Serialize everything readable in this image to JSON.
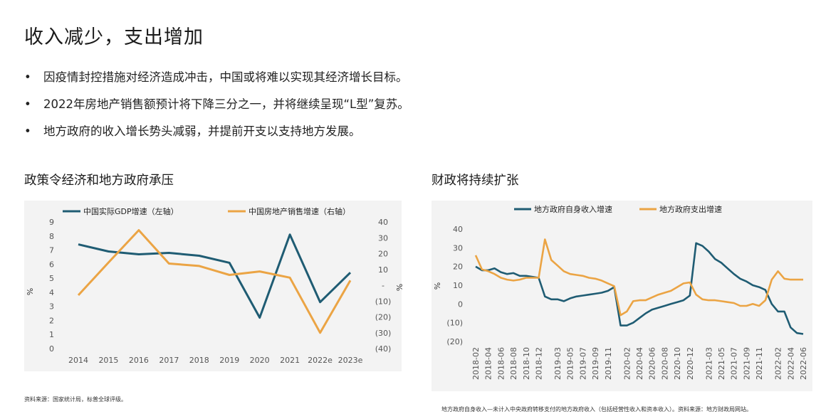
{
  "title": "收入减少，支出增加",
  "bullets": [
    "因疫情封控措施对经济造成冲击，中国或将难以实现其经济增长目标。",
    "2022年房地产销售额预计将下降三分之一，并将继续呈现“L型”复苏。",
    "地方政府的收入增长势头减弱，并提前开支以支持地方发展。"
  ],
  "bullet_symbol": "•",
  "left_source": "资料来源：国家统计局，标普全球评级。",
  "right_source": "地方政府自身收入—未计入中央政府转移支付的地方政府收入（包括经营性收入和资本收入）。资料来源：地方财政局网站。",
  "chart_data": [
    {
      "type": "line",
      "title": "政策令经济和地方政府承压",
      "categories": [
        "2014",
        "2015",
        "2016",
        "2017",
        "2018",
        "2019",
        "2020",
        "2021",
        "2022e",
        "2023e"
      ],
      "series": [
        {
          "name": "中国实际GDP增速（左轴）",
          "axis": "left",
          "color": "#1f5c73",
          "values": [
            7.4,
            6.9,
            6.7,
            6.8,
            6.6,
            6.1,
            2.2,
            8.1,
            3.3,
            5.4
          ]
        },
        {
          "name": "中国房地产销售增速（右轴）",
          "axis": "right",
          "color": "#eba444",
          "values": [
            -6.3,
            14.4,
            34.8,
            13.7,
            12.2,
            6.5,
            8.7,
            4.8,
            -30,
            3
          ]
        }
      ],
      "ylabel": "%",
      "y2label": "%",
      "ylim": [
        0,
        9
      ],
      "yticks": [
        "9",
        "8",
        "7",
        "6",
        "5",
        "4",
        "3",
        "2",
        "1",
        "0"
      ],
      "y2lim": [
        -40,
        40
      ],
      "y2ticks": [
        "40",
        "30",
        "20",
        "10",
        "-",
        "(10)",
        "(20)",
        "(30)",
        "(40)"
      ],
      "grid": false,
      "legend_position": "top",
      "background": "#f3f3f3"
    },
    {
      "type": "line",
      "title": "财政将持续扩张",
      "categories": [
        "2018-02",
        "2018-03",
        "2018-04",
        "2018-05",
        "2018-06",
        "2018-07",
        "2018-08",
        "2018-09",
        "2018-10",
        "2018-11",
        "2018-12",
        "2019-01",
        "2019-02",
        "2019-03",
        "2019-04",
        "2019-05",
        "2019-06",
        "2019-07",
        "2019-08",
        "2019-09",
        "2019-10",
        "2019-11",
        "2019-12",
        "2020-01",
        "2020-02",
        "2020-03",
        "2020-04",
        "2020-05",
        "2020-06",
        "2020-07",
        "2020-08",
        "2020-09",
        "2020-10",
        "2020-11",
        "2020-12",
        "2021-01",
        "2021-02",
        "2021-03",
        "2021-04",
        "2021-05",
        "2021-06",
        "2021-07",
        "2021-08",
        "2021-09",
        "2021-10",
        "2021-11",
        "2021-12",
        "2022-01",
        "2022-02",
        "2022-03",
        "2022-04",
        "2022-05",
        "2022-06"
      ],
      "x_tick_labels": [
        "2018-02",
        "2018-04",
        "2018-06",
        "2018-08",
        "2018-10",
        "2018-12",
        "2019-03",
        "2019-05",
        "2019-07",
        "2019-09",
        "2019-11",
        "2020-02",
        "2020-04",
        "2020-06",
        "2020-08",
        "2020-10",
        "2020-12",
        "2021-03",
        "2021-05",
        "2021-07",
        "2021-09",
        "2021-11",
        "2022-02",
        "2022-04",
        "2022-06"
      ],
      "series": [
        {
          "name": "地方政府自身收入增速",
          "color": "#1f5c73",
          "values": [
            20,
            18,
            18,
            19,
            17,
            16,
            16.5,
            15,
            15,
            14.5,
            14,
            4,
            2.5,
            2.5,
            1.5,
            3,
            4,
            4.5,
            5,
            5.5,
            6,
            7,
            9,
            -11.5,
            -11.5,
            -10,
            -7.5,
            -5,
            -3,
            -2,
            -1,
            0,
            1,
            2,
            4.5,
            32.5,
            31,
            28,
            24,
            22,
            19,
            16,
            13.5,
            12,
            10,
            9,
            7.5,
            0,
            -4,
            -4,
            -12.5,
            -15.5,
            -16
          ]
        },
        {
          "name": "地方政府支出增速",
          "color": "#eba444",
          "values": [
            26,
            18.5,
            17.5,
            16,
            14,
            13,
            12.5,
            13,
            14,
            14,
            14,
            34.5,
            23.5,
            20.5,
            17.5,
            16,
            15.5,
            15,
            14,
            13.5,
            12.5,
            11,
            9.5,
            -6,
            -4,
            1.5,
            2,
            2,
            3.5,
            5,
            6,
            7,
            9,
            11,
            11.5,
            5,
            2.5,
            2,
            2,
            1.5,
            1,
            0.5,
            -1,
            -1,
            0,
            -1,
            2,
            13,
            17.5,
            13.5,
            13,
            13,
            13
          ]
        }
      ],
      "ylabel": "%",
      "ylim": [
        -20,
        40
      ],
      "yticks": [
        "40",
        "30",
        "20",
        "10",
        "0",
        "(10)",
        "(20)"
      ],
      "grid": false,
      "legend_position": "top",
      "background": "#f3f3f3"
    }
  ]
}
